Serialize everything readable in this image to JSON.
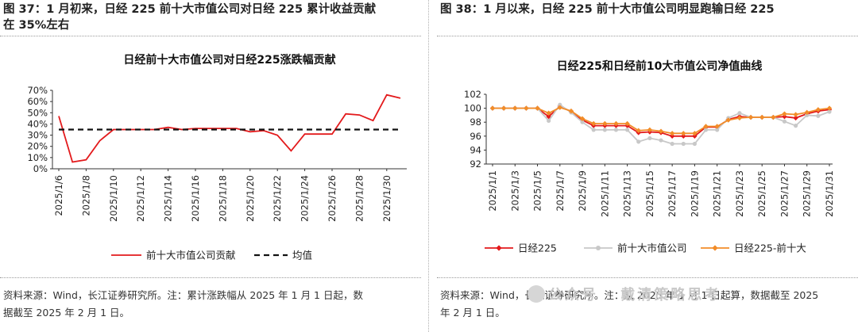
{
  "left": {
    "caption_line1": "图 37：1 月初来，日经 225 前十大市值公司对日经 225 累计收益贡献",
    "caption_line2": "在 35%左右",
    "source_line1": "资料来源：Wind，长江证券研究所。注：累计涨跌幅从 2025 年 1 月 1 日起，数",
    "source_line2": "据截至 2025 年 2 月 1 日。"
  },
  "right": {
    "caption": "图 38：1 月以来，日经 225 前十大市值公司明显跑输日经 225",
    "source_line1": "资料来源：Wind，长江证券研究所。注：从 2025 年 1 月 1 日起算，数据截至 2025",
    "source_line2": "年 2 月 1 日。"
  },
  "watermark": "公众号 · 戴清策略思考",
  "chart_data": [
    {
      "type": "line",
      "title": "日经前十大市值公司对日经225涨跌幅贡献",
      "xlabel": "",
      "ylabel": "",
      "ylim": [
        0,
        70
      ],
      "yticks": [
        "0%",
        "10%",
        "20%",
        "30%",
        "40%",
        "50%",
        "60%",
        "70%"
      ],
      "x": [
        "2025/1/6",
        "2025/1/7",
        "2025/1/8",
        "2025/1/9",
        "2025/1/10",
        "2025/1/11",
        "2025/1/12",
        "2025/1/13",
        "2025/1/14",
        "2025/1/15",
        "2025/1/16",
        "2025/1/17",
        "2025/1/18",
        "2025/1/19",
        "2025/1/20",
        "2025/1/21",
        "2025/1/22",
        "2025/1/23",
        "2025/1/24",
        "2025/1/25",
        "2025/1/26",
        "2025/1/27",
        "2025/1/28",
        "2025/1/29",
        "2025/1/30",
        "2025/1/31"
      ],
      "xtick_labels": [
        "2025/1/6",
        "2025/1/8",
        "2025/1/10",
        "2025/1/12",
        "2025/1/14",
        "2025/1/16",
        "2025/1/18",
        "2025/1/20",
        "2025/1/22",
        "2025/1/24",
        "2025/1/26",
        "2025/1/28",
        "2025/1/30"
      ],
      "series": [
        {
          "name": "前十大市值公司贡献",
          "color": "#e31a1c",
          "style": "solid",
          "values": [
            47,
            6,
            8,
            25,
            35,
            35,
            35,
            35,
            37,
            35,
            36,
            36,
            36,
            36,
            33,
            34,
            30,
            16,
            31,
            31,
            31,
            49,
            48,
            43,
            66,
            63
          ]
        },
        {
          "name": "均值",
          "color": "#111111",
          "style": "dashed",
          "values": [
            35,
            35,
            35,
            35,
            35,
            35,
            35,
            35,
            35,
            35,
            35,
            35,
            35,
            35,
            35,
            35,
            35,
            35,
            35,
            35,
            35,
            35,
            35,
            35,
            35,
            35
          ]
        }
      ],
      "legend": "bottom"
    },
    {
      "type": "line",
      "title": "日经225和日经前10大市值公司净值曲线",
      "xlabel": "",
      "ylabel": "",
      "ylim": [
        92,
        102
      ],
      "yticks": [
        "92",
        "94",
        "96",
        "98",
        "100",
        "102"
      ],
      "x": [
        "2025/1/1",
        "2025/1/2",
        "2025/1/3",
        "2025/1/4",
        "2025/1/5",
        "2025/1/6",
        "2025/1/7",
        "2025/1/8",
        "2025/1/9",
        "2025/1/10",
        "2025/1/11",
        "2025/1/12",
        "2025/1/13",
        "2025/1/14",
        "2025/1/15",
        "2025/1/16",
        "2025/1/17",
        "2025/1/18",
        "2025/1/19",
        "2025/1/20",
        "2025/1/21",
        "2025/1/22",
        "2025/1/23",
        "2025/1/24",
        "2025/1/25",
        "2025/1/26",
        "2025/1/27",
        "2025/1/28",
        "2025/1/29",
        "2025/1/30",
        "2025/1/31"
      ],
      "xtick_labels": [
        "2025/1/1",
        "2025/1/3",
        "2025/1/5",
        "2025/1/7",
        "2025/1/9",
        "2025/1/11",
        "2025/1/13",
        "2025/1/15",
        "2025/1/17",
        "2025/1/19",
        "2025/1/21",
        "2025/1/23",
        "2025/1/25",
        "2025/1/27",
        "2025/1/29",
        "2025/1/31"
      ],
      "series": [
        {
          "name": "日经225",
          "color": "#e31a1c",
          "marker": "diamond",
          "values": [
            100,
            100,
            100,
            100,
            100,
            98.8,
            100.3,
            99.5,
            98.3,
            97.5,
            97.5,
            97.5,
            97.5,
            96.5,
            96.6,
            96.5,
            96.0,
            96.0,
            96.0,
            97.3,
            97.3,
            98.4,
            98.8,
            98.7,
            98.7,
            98.7,
            98.8,
            98.6,
            99.2,
            99.6,
            99.8
          ]
        },
        {
          "name": "前十大市值公司",
          "color": "#c8c8c8",
          "marker": "circle",
          "values": [
            100,
            100,
            100,
            100,
            100,
            98.2,
            100.5,
            99.4,
            98.0,
            96.9,
            96.9,
            96.9,
            96.9,
            95.2,
            95.7,
            95.4,
            94.9,
            94.9,
            94.9,
            96.9,
            96.9,
            98.6,
            99.3,
            98.7,
            98.7,
            98.7,
            98.1,
            97.5,
            99.0,
            98.9,
            99.5
          ]
        },
        {
          "name": "日经225-前十大",
          "color": "#f28c28",
          "marker": "diamond",
          "values": [
            100,
            100,
            100,
            100,
            100,
            99.3,
            100.1,
            99.6,
            98.5,
            97.8,
            97.8,
            97.8,
            97.8,
            96.8,
            96.9,
            96.7,
            96.4,
            96.4,
            96.4,
            97.4,
            97.4,
            98.3,
            98.6,
            98.7,
            98.7,
            98.7,
            99.2,
            99.1,
            99.4,
            99.8,
            100.0
          ]
        }
      ],
      "legend": "bottom"
    }
  ]
}
